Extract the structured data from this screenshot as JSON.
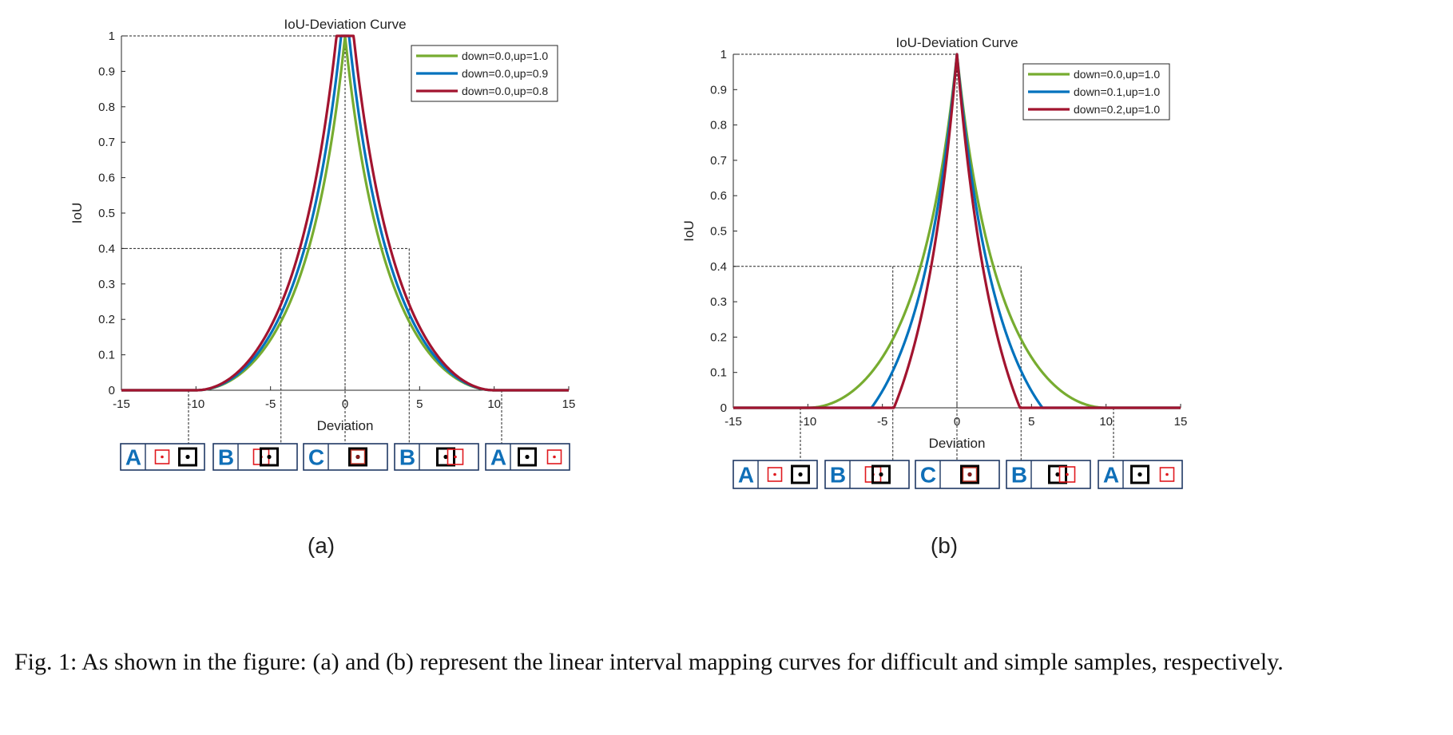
{
  "figure_caption": "Fig. 1: As shown in the figure: (a) and (b) represent the linear interval mapping curves for difficult and simple samples, respectively.",
  "colors": {
    "green": "#77AC30",
    "blue": "#0072BD",
    "red": "#A2142F",
    "box_blue": "#0F6FB8",
    "box_border": "#1F3864"
  },
  "panels": [
    {
      "label": "(a)",
      "legend_title_hidden": ""
    },
    {
      "label": "(b)",
      "legend_title_hidden": ""
    }
  ],
  "chart_data": [
    {
      "type": "line",
      "title": "IoU-Deviation Curve",
      "xlabel": "Deviation",
      "ylabel": "IoU",
      "xlim": [
        -15,
        15
      ],
      "ylim": [
        0,
        1
      ],
      "xticks": [
        -15,
        -10,
        -5,
        0,
        5,
        10,
        15
      ],
      "xtick_labels": [
        "-15",
        "-10",
        "-5",
        "0",
        "5",
        "10",
        "15"
      ],
      "yticks": [
        0,
        0.1,
        0.2,
        0.3,
        0.4,
        0.5,
        0.6,
        0.7,
        0.8,
        0.9,
        1
      ],
      "ytick_labels": [
        "0",
        "0.1",
        "0.2",
        "0.3",
        "0.4",
        "0.5",
        "0.6",
        "0.7",
        "0.8",
        "0.9",
        "1"
      ],
      "legend_position": "top-right",
      "series": [
        {
          "name": "down=0.0,up=1.0",
          "color": "#77AC30",
          "down": 0.0,
          "up": 1.0
        },
        {
          "name": "down=0.0,up=0.9",
          "color": "#0072BD",
          "down": 0.0,
          "up": 0.9
        },
        {
          "name": "down=0.0,up=0.8",
          "color": "#A2142F",
          "down": 0.0,
          "up": 0.8
        }
      ],
      "guides": {
        "h_levels": [
          1,
          0.4
        ],
        "v_positions": [
          -10.5,
          -4.3,
          0,
          4.3,
          10.5
        ]
      },
      "region_boxes": [
        {
          "letter": "A",
          "kind": "far-left"
        },
        {
          "letter": "B",
          "kind": "overlap-left"
        },
        {
          "letter": "C",
          "kind": "center"
        },
        {
          "letter": "B",
          "kind": "overlap-right"
        },
        {
          "letter": "A",
          "kind": "far-right"
        }
      ]
    },
    {
      "type": "line",
      "title": "IoU-Deviation Curve",
      "xlabel": "Deviation",
      "ylabel": "IoU",
      "xlim": [
        -15,
        15
      ],
      "ylim": [
        0,
        1
      ],
      "xticks": [
        -15,
        -10,
        -5,
        0,
        5,
        10,
        15
      ],
      "xtick_labels": [
        "-15",
        "-10",
        "-5",
        "0",
        "5",
        "10",
        "15"
      ],
      "yticks": [
        0,
        0.1,
        0.2,
        0.3,
        0.4,
        0.5,
        0.6,
        0.7,
        0.8,
        0.9,
        1
      ],
      "ytick_labels": [
        "0",
        "0.1",
        "0.2",
        "0.3",
        "0.4",
        "0.5",
        "0.6",
        "0.7",
        "0.8",
        "0.9",
        "1"
      ],
      "legend_position": "top-right",
      "series": [
        {
          "name": "down=0.0,up=1.0",
          "color": "#77AC30",
          "down": 0.0,
          "up": 1.0
        },
        {
          "name": "down=0.1,up=1.0",
          "color": "#0072BD",
          "down": 0.1,
          "up": 1.0
        },
        {
          "name": "down=0.2,up=1.0",
          "color": "#A2142F",
          "down": 0.2,
          "up": 1.0
        }
      ],
      "guides": {
        "h_levels": [
          1,
          0.4
        ],
        "v_positions": [
          -10.5,
          -4.3,
          0,
          4.3,
          10.5
        ]
      },
      "region_boxes": [
        {
          "letter": "A",
          "kind": "far-left"
        },
        {
          "letter": "B",
          "kind": "overlap-left"
        },
        {
          "letter": "C",
          "kind": "center"
        },
        {
          "letter": "B",
          "kind": "overlap-right"
        },
        {
          "letter": "A",
          "kind": "far-right"
        }
      ]
    }
  ]
}
